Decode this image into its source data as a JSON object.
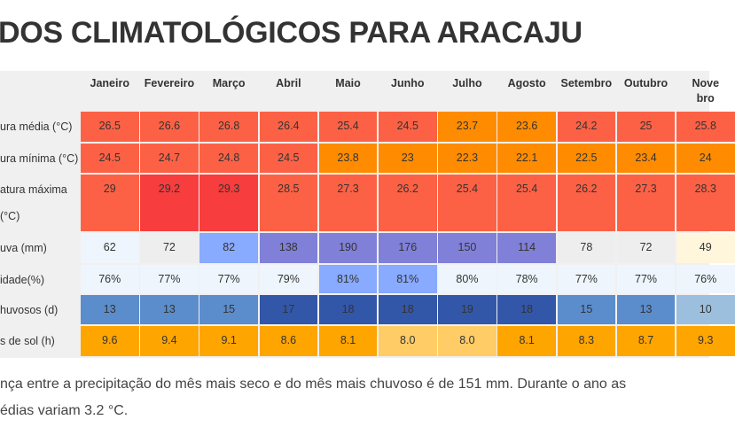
{
  "title": "DOS CLIMATOLÓGICOS PARA ARACAJU",
  "months": [
    "Janeiro",
    "Fevereiro",
    "Março",
    "Abril",
    "Maio",
    "Junho",
    "Julho",
    "Agosto",
    "Setembro",
    "Outubro",
    "Nove- bro"
  ],
  "rows": [
    {
      "label": "ura média (°C)",
      "values": [
        "26.5",
        "26.6",
        "26.8",
        "26.4",
        "25.4",
        "24.5",
        "23.7",
        "23.6",
        "24.2",
        "25",
        "25.8"
      ],
      "colors": [
        "#fd6145",
        "#fd6145",
        "#fd6145",
        "#fd6145",
        "#fd6145",
        "#fd6145",
        "#ff8c00",
        "#ff8c00",
        "#fd6145",
        "#fd6145",
        "#fd6145"
      ]
    },
    {
      "label": "ura mínima (°C)",
      "values": [
        "24.5",
        "24.7",
        "24.8",
        "24.5",
        "23.8",
        "23",
        "22.3",
        "22.1",
        "22.5",
        "23.4",
        "24"
      ],
      "colors": [
        "#fd6145",
        "#fd6145",
        "#fd6145",
        "#fd6145",
        "#ff8c00",
        "#ff8c00",
        "#ff8c00",
        "#ff8c00",
        "#ff8c00",
        "#ff8c00",
        "#ff8c00"
      ]
    },
    {
      "label": "atura máxima\n(°C)",
      "values": [
        "29",
        "29.2",
        "29.3",
        "28.5",
        "27.3",
        "26.2",
        "25.4",
        "25.4",
        "26.2",
        "27.3",
        "28.3"
      ],
      "colors": [
        "#fd6145",
        "#f73d3d",
        "#f73d3d",
        "#fd6145",
        "#fd6145",
        "#fd6145",
        "#fd6145",
        "#fd6145",
        "#fd6145",
        "#fd6145",
        "#fd6145"
      ]
    },
    {
      "label": "uva (mm)",
      "values": [
        "62",
        "72",
        "82",
        "138",
        "190",
        "176",
        "150",
        "114",
        "78",
        "72",
        "49"
      ],
      "colors": [
        "#eef5fd",
        "#eeeeee",
        "#88aaff",
        "#8080d8",
        "#8080d8",
        "#8080d8",
        "#8080d8",
        "#8080d8",
        "#eeeeee",
        "#eeeeee",
        "#fff6dc"
      ]
    },
    {
      "label": "idade(%)",
      "values": [
        "76%",
        "77%",
        "77%",
        "79%",
        "81%",
        "81%",
        "80%",
        "78%",
        "77%",
        "77%",
        "76%"
      ],
      "colors": [
        "#eef5fd",
        "#eef5fd",
        "#eef5fd",
        "#eef5fd",
        "#88aaff",
        "#88aaff",
        "#eef5fd",
        "#eef5fd",
        "#eef5fd",
        "#eef5fd",
        "#eef5fd"
      ]
    },
    {
      "label": "huvosos (d)",
      "values": [
        "13",
        "13",
        "15",
        "17",
        "18",
        "18",
        "19",
        "18",
        "15",
        "13",
        "10"
      ],
      "colors": [
        "#5b8dcc",
        "#5b8dcc",
        "#5b8dcc",
        "#3357a8",
        "#3357a8",
        "#3357a8",
        "#3357a8",
        "#3357a8",
        "#5b8dcc",
        "#5b8dcc",
        "#9dbfde"
      ]
    },
    {
      "label": "s de sol (h)",
      "values": [
        "9.6",
        "9.4",
        "9.1",
        "8.6",
        "8.1",
        "8.0",
        "8.0",
        "8.1",
        "8.3",
        "8.7",
        "9.3"
      ],
      "colors": [
        "#ffa500",
        "#ffa500",
        "#ffa500",
        "#ffa500",
        "#ffa500",
        "#ffcc66",
        "#ffcc66",
        "#ffa500",
        "#ffa500",
        "#ffa500",
        "#ffa500"
      ]
    }
  ],
  "paragraph": {
    "line1": "nça entre a precipitação do mês mais seco e do mês mais chuvoso é de 151 mm. Durante o ano as",
    "line2": "édias variam 3.2 °C."
  }
}
